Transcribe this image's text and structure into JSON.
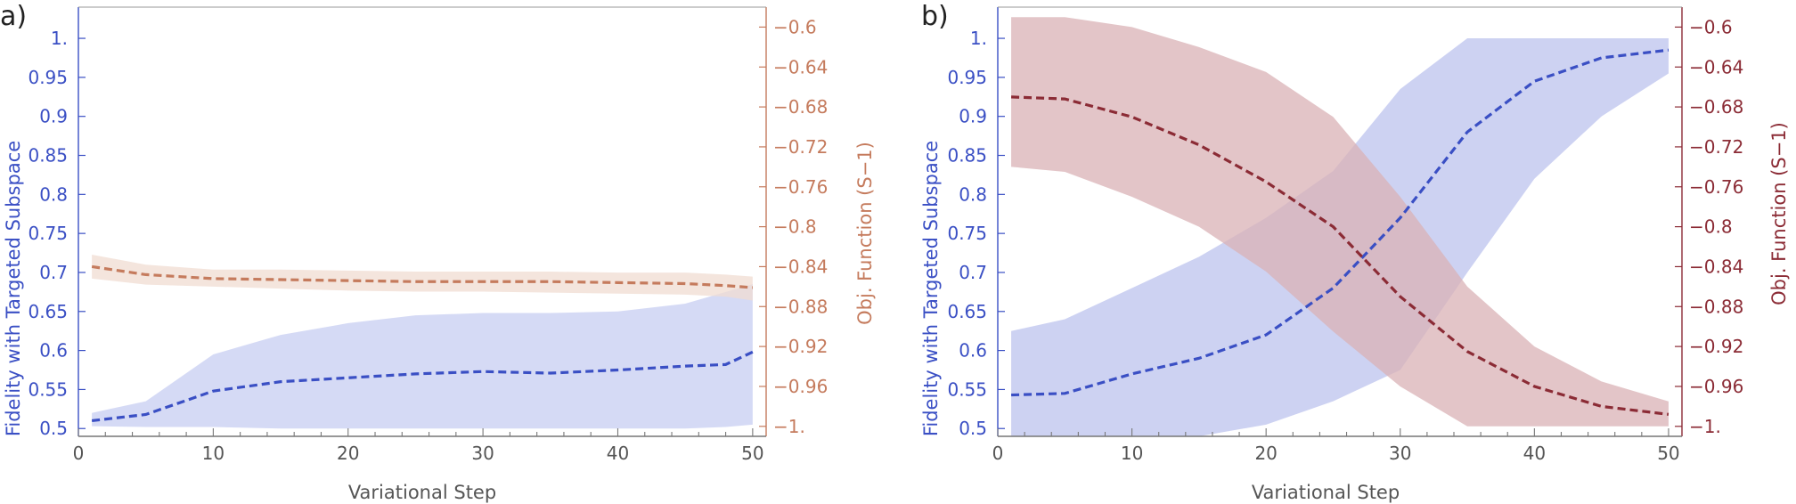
{
  "chart_data": [
    {
      "type": "line",
      "panel_label": "a)",
      "xlabel": "Variational Step",
      "ylabel": "Fidelity with Targeted Subspace",
      "y2label": "Obj. Function (S−1)",
      "xlim": [
        0,
        51
      ],
      "xticks": [
        "0",
        "10",
        "20",
        "30",
        "40",
        "50"
      ],
      "ylim": [
        0.49,
        1.04
      ],
      "yticks": [
        "0.5",
        "0.55",
        "0.6",
        "0.65",
        "0.7",
        "0.75",
        "0.8",
        "0.85",
        "0.9",
        "0.95",
        "1."
      ],
      "y2lim": [
        -1.01,
        -0.58
      ],
      "y2ticks": [
        "−1.",
        "−0.96",
        "−0.92",
        "−0.88",
        "−0.84",
        "−0.8",
        "−0.76",
        "−0.72",
        "−0.68",
        "−0.64",
        "−0.6"
      ],
      "grid": false,
      "series": [
        {
          "axis": "left",
          "color": "#3a4fc4",
          "band_color": "#c7cdf2",
          "x": [
            1,
            5,
            10,
            15,
            20,
            25,
            30,
            35,
            40,
            45,
            48,
            50
          ],
          "mean": [
            0.51,
            0.518,
            0.548,
            0.56,
            0.565,
            0.57,
            0.573,
            0.571,
            0.575,
            0.58,
            0.582,
            0.598
          ],
          "lower": [
            0.503,
            0.502,
            0.502,
            0.5,
            0.5,
            0.5,
            0.5,
            0.5,
            0.5,
            0.5,
            0.502,
            0.505
          ],
          "upper": [
            0.52,
            0.535,
            0.595,
            0.62,
            0.635,
            0.645,
            0.648,
            0.648,
            0.65,
            0.66,
            0.675,
            0.685
          ]
        },
        {
          "axis": "right",
          "color": "#c57b5d",
          "band_color": "#f0dcd2",
          "x": [
            1,
            5,
            10,
            15,
            20,
            25,
            30,
            35,
            40,
            45,
            48,
            50
          ],
          "mean": [
            -0.84,
            -0.848,
            -0.852,
            -0.853,
            -0.854,
            -0.855,
            -0.855,
            -0.855,
            -0.856,
            -0.857,
            -0.859,
            -0.861
          ],
          "lower": [
            -0.852,
            -0.858,
            -0.86,
            -0.862,
            -0.864,
            -0.865,
            -0.865,
            -0.866,
            -0.867,
            -0.868,
            -0.87,
            -0.874
          ],
          "upper": [
            -0.828,
            -0.838,
            -0.843,
            -0.843,
            -0.844,
            -0.845,
            -0.845,
            -0.845,
            -0.846,
            -0.846,
            -0.848,
            -0.85
          ]
        }
      ]
    },
    {
      "type": "line",
      "panel_label": "b)",
      "xlabel": "Variational Step",
      "ylabel": "Fidelity with Targeted Subspace",
      "y2label": "Obj. Function (S−1)",
      "xlim": [
        0,
        51
      ],
      "xticks": [
        "0",
        "10",
        "20",
        "30",
        "40",
        "50"
      ],
      "ylim": [
        0.49,
        1.04
      ],
      "yticks": [
        "0.5",
        "0.55",
        "0.6",
        "0.65",
        "0.7",
        "0.75",
        "0.8",
        "0.85",
        "0.9",
        "0.95",
        "1."
      ],
      "y2lim": [
        -1.01,
        -0.58
      ],
      "y2ticks": [
        "−1.",
        "−0.96",
        "−0.92",
        "−0.88",
        "−0.84",
        "−0.8",
        "−0.76",
        "−0.72",
        "−0.68",
        "−0.64",
        "−0.6"
      ],
      "grid": false,
      "series": [
        {
          "axis": "left",
          "color": "#3a4fc4",
          "band_color": "#bcc3ee",
          "x": [
            1,
            5,
            10,
            15,
            20,
            25,
            30,
            35,
            40,
            45,
            50
          ],
          "mean": [
            0.543,
            0.545,
            0.57,
            0.59,
            0.62,
            0.68,
            0.77,
            0.88,
            0.945,
            0.975,
            0.985
          ],
          "lower": [
            0.49,
            0.49,
            0.49,
            0.49,
            0.505,
            0.535,
            0.575,
            0.7,
            0.82,
            0.9,
            0.955
          ],
          "upper": [
            0.625,
            0.64,
            0.68,
            0.72,
            0.77,
            0.83,
            0.935,
            1.0,
            1.0,
            1.0,
            1.0
          ]
        },
        {
          "axis": "right",
          "color": "#8b2b35",
          "band_color": "#d9b1b6",
          "x": [
            1,
            5,
            10,
            15,
            20,
            25,
            30,
            35,
            40,
            45,
            50
          ],
          "mean": [
            -0.67,
            -0.672,
            -0.69,
            -0.718,
            -0.755,
            -0.8,
            -0.87,
            -0.925,
            -0.96,
            -0.98,
            -0.988
          ],
          "lower": [
            -0.74,
            -0.745,
            -0.77,
            -0.8,
            -0.845,
            -0.905,
            -0.96,
            -1.0,
            -1.0,
            -1.0,
            -1.0
          ],
          "upper": [
            -0.59,
            -0.59,
            -0.6,
            -0.62,
            -0.645,
            -0.69,
            -0.77,
            -0.86,
            -0.92,
            -0.955,
            -0.975
          ]
        }
      ]
    }
  ]
}
